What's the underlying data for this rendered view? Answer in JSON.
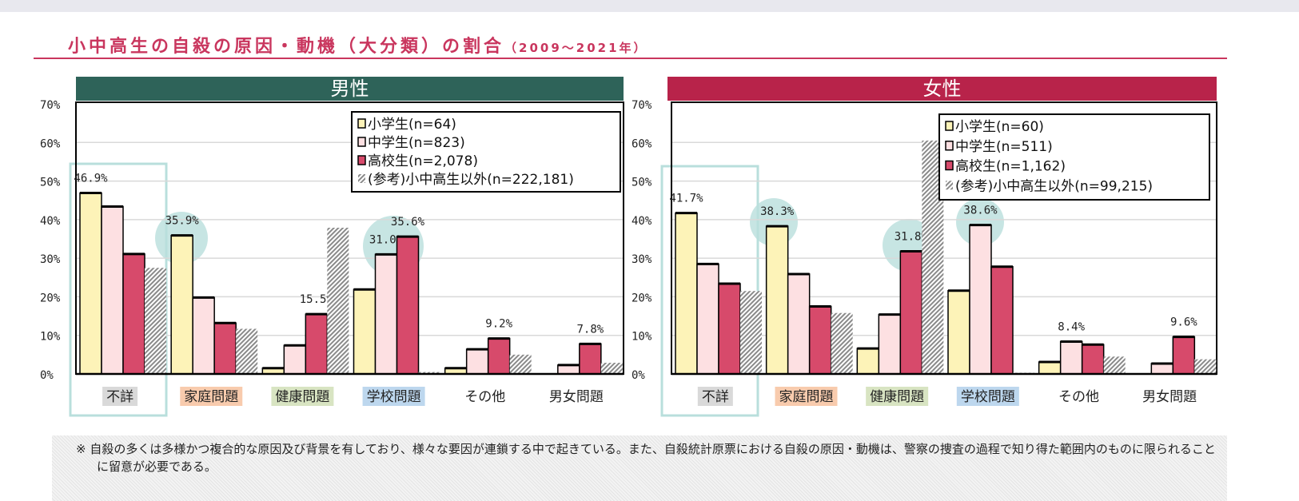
{
  "title": "小中高生の自殺の原因・動機（大分類）の割合",
  "subtitle": "（2009～2021年）",
  "footnote": "※ 自殺の多くは多様かつ複合的な原因及び背景を有しており、様々な要因が連鎖する中で起きている。また、自殺統計原票における自殺の原因・動機は、警察の捜査の過程で知り得た範囲内のものに限られることに留意が必要である。",
  "colors": {
    "male_header": "#2e6359",
    "female_header": "#b8234a",
    "elementary": "#fdf3b8",
    "junior": "#fde0e2",
    "high": "#d74a6b",
    "other": "#9a9a9a",
    "highlight": "#b9dfdc"
  },
  "chart_data": [
    {
      "type": "bar",
      "title": "男性",
      "ylim": [
        0,
        70
      ],
      "yticks": [
        "0%",
        "10%",
        "20%",
        "30%",
        "40%",
        "50%",
        "60%",
        "70%"
      ],
      "grid": true,
      "legend": "top-right",
      "categories": [
        "不詳",
        "家庭問題",
        "健康問題",
        "学校問題",
        "その他",
        "男女問題"
      ],
      "category_bg": [
        "#d9d9d9",
        "#f8cbad",
        "#d8e4c2",
        "#bdd7ee",
        null,
        null
      ],
      "series": [
        {
          "name": "小学生(n=64)",
          "values": [
            46.9,
            35.9,
            1.5,
            21.9,
            1.5,
            0
          ],
          "labels": [
            "46.9%",
            "35.9%",
            null,
            null,
            null,
            null
          ]
        },
        {
          "name": "中学生(n=823)",
          "values": [
            43.4,
            19.8,
            7.4,
            31.0,
            6.4,
            2.3
          ],
          "labels": [
            null,
            null,
            null,
            "31.0%",
            null,
            null
          ]
        },
        {
          "name": "高校生(n=2,078)",
          "values": [
            31.1,
            13.2,
            15.5,
            35.6,
            9.2,
            7.8
          ],
          "labels": [
            null,
            null,
            "15.5%",
            "35.6%",
            "9.2%",
            "7.8%"
          ]
        },
        {
          "name": "(参考)小中高生以外(n=222,181)",
          "values": [
            27.5,
            11.7,
            37.9,
            0.5,
            5.0,
            2.9
          ],
          "labels": [
            null,
            null,
            null,
            null,
            null,
            null
          ]
        }
      ]
    },
    {
      "type": "bar",
      "title": "女性",
      "ylim": [
        0,
        70
      ],
      "yticks": [
        "0%",
        "10%",
        "20%",
        "30%",
        "40%",
        "50%",
        "60%",
        "70%"
      ],
      "grid": true,
      "legend": "top-right",
      "categories": [
        "不詳",
        "家庭問題",
        "健康問題",
        "学校問題",
        "その他",
        "男女問題"
      ],
      "category_bg": [
        "#d9d9d9",
        "#f8cbad",
        "#d8e4c2",
        "#bdd7ee",
        null,
        null
      ],
      "series": [
        {
          "name": "小学生(n=60)",
          "values": [
            41.7,
            38.3,
            6.6,
            21.6,
            3.1,
            0
          ],
          "labels": [
            "41.7%",
            "38.3%",
            null,
            null,
            null,
            null
          ]
        },
        {
          "name": "中学生(n=511)",
          "values": [
            28.5,
            25.9,
            15.4,
            38.6,
            8.4,
            2.7
          ],
          "labels": [
            null,
            null,
            null,
            "38.6%",
            "8.4%",
            null
          ]
        },
        {
          "name": "高校生(n=1,162)",
          "values": [
            23.4,
            17.5,
            31.8,
            27.8,
            7.6,
            9.6
          ],
          "labels": [
            null,
            null,
            "31.8%",
            null,
            null,
            "9.6%"
          ]
        },
        {
          "name": "(参考)小中高生以外(n=99,215)",
          "values": [
            21.5,
            15.8,
            60.5,
            0.3,
            4.5,
            3.8
          ],
          "labels": [
            null,
            null,
            null,
            null,
            null,
            null
          ]
        }
      ]
    }
  ]
}
